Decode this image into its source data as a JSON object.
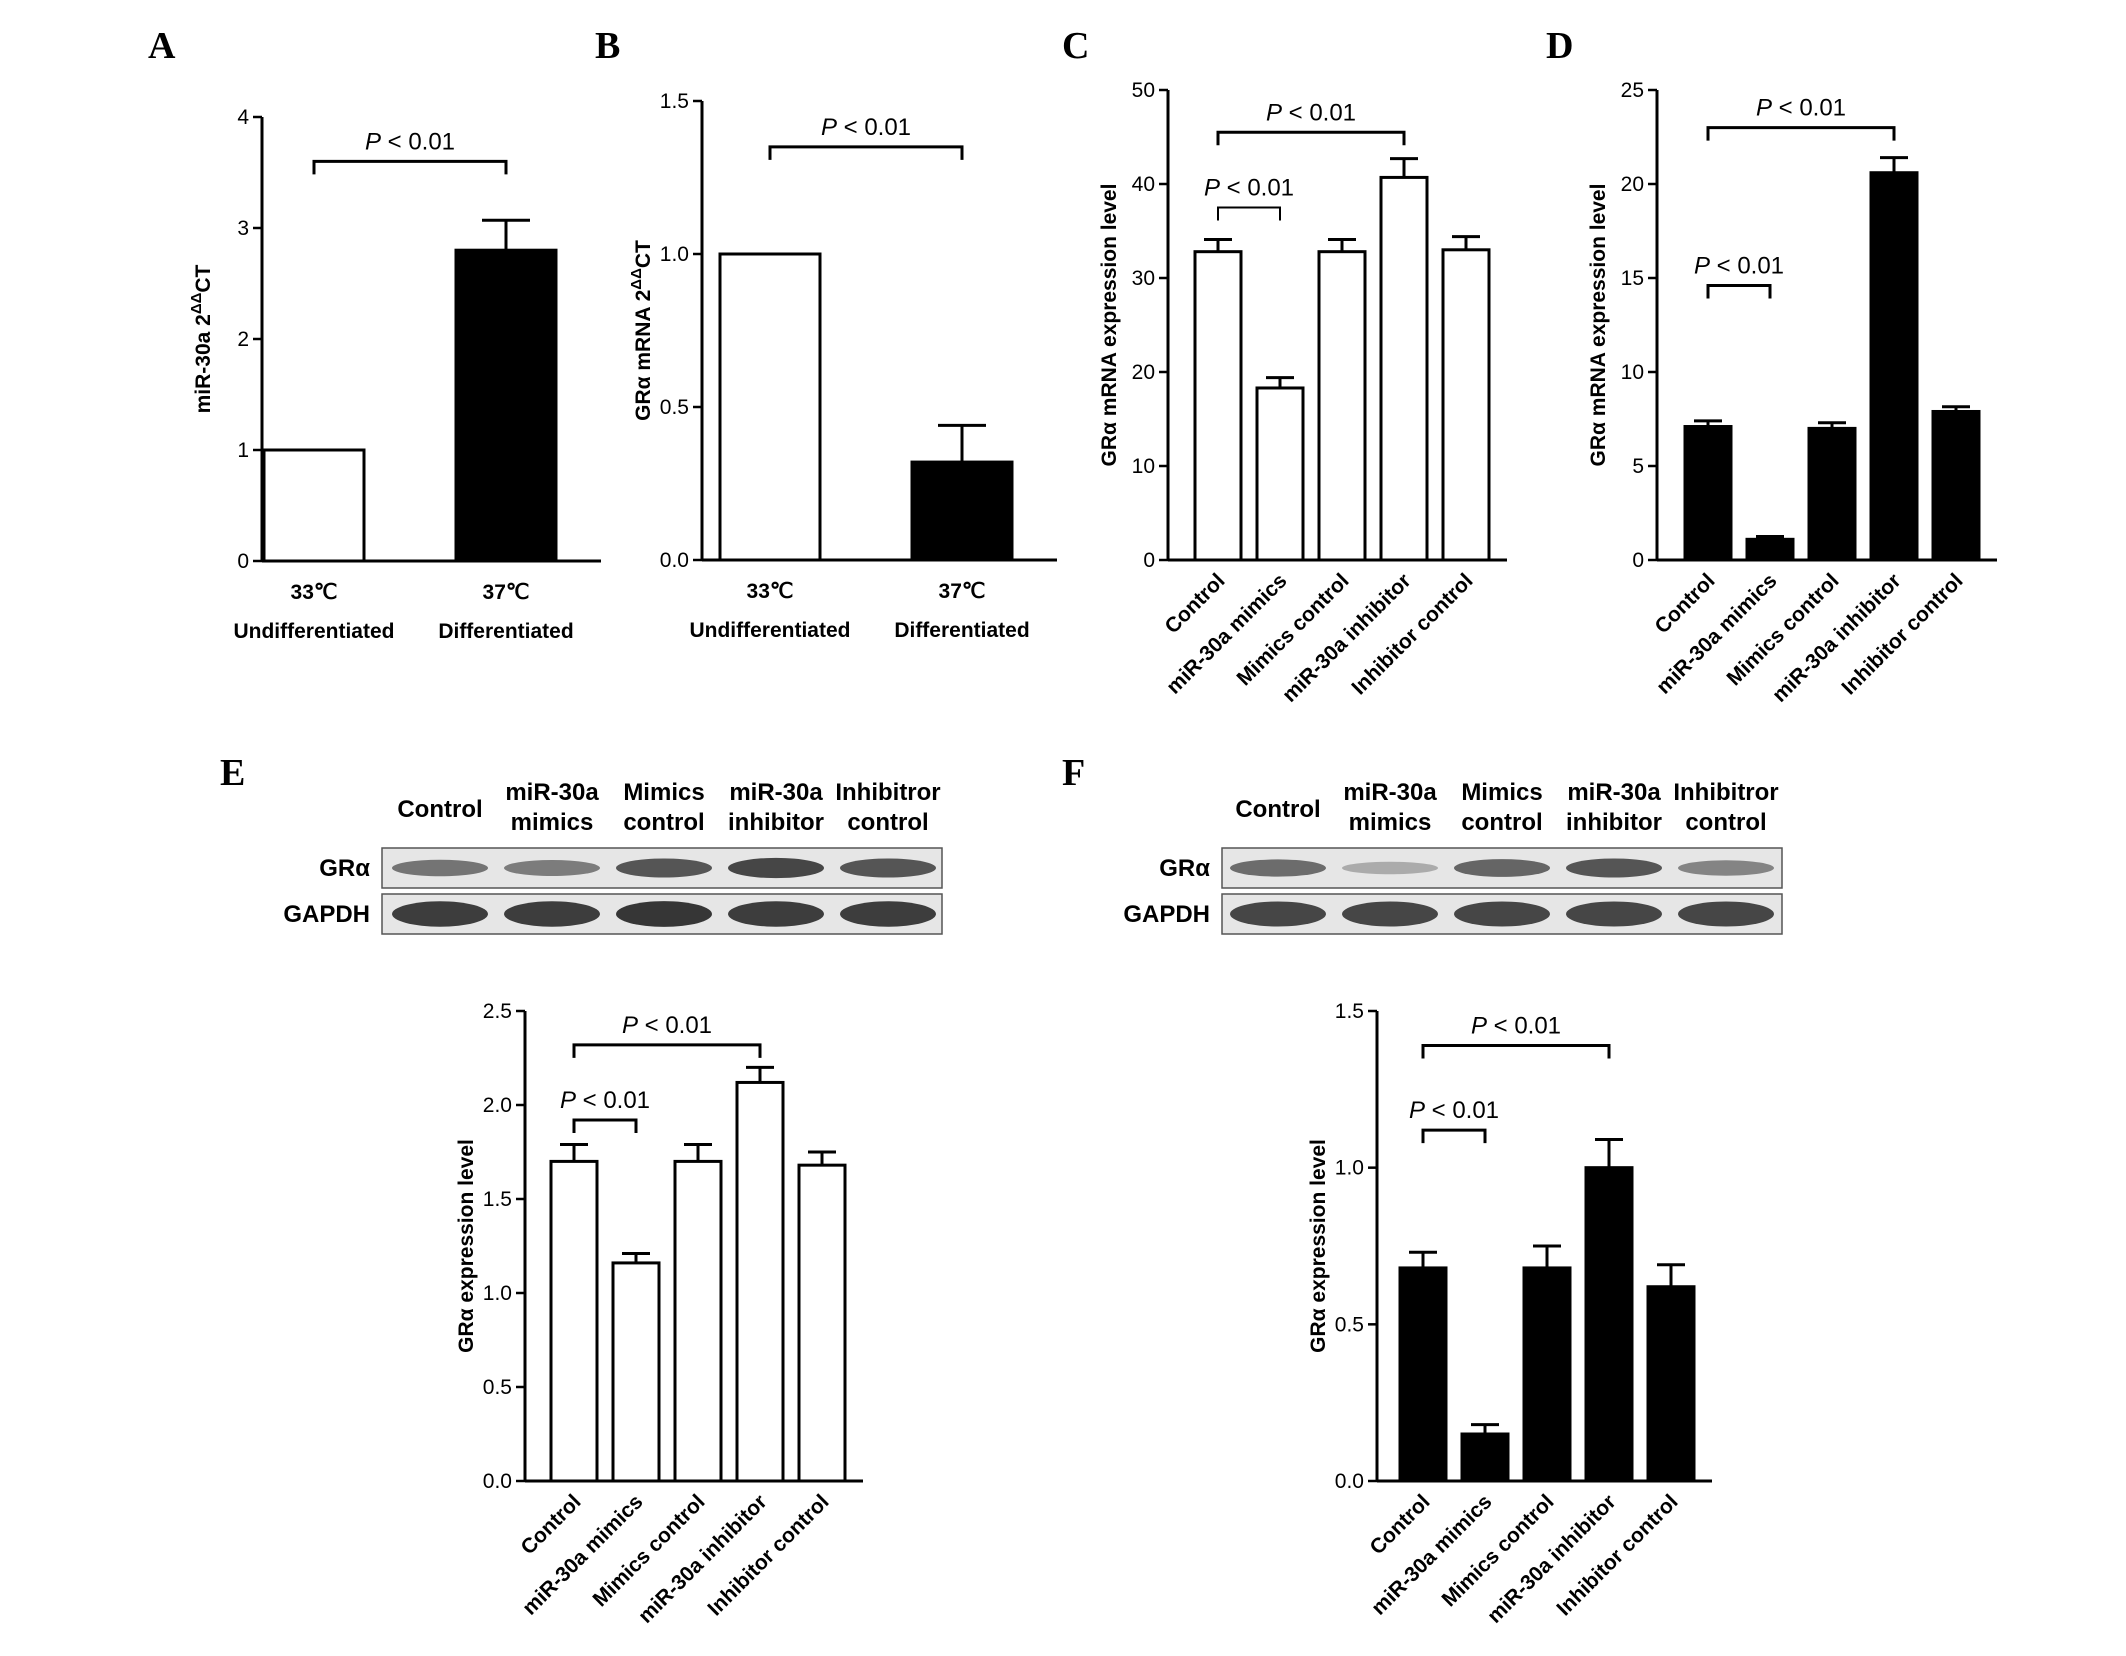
{
  "figure": {
    "panels": [
      {
        "letter": "A"
      },
      {
        "letter": "B"
      },
      {
        "letter": "C"
      },
      {
        "letter": "D"
      },
      {
        "letter": "E"
      },
      {
        "letter": "F"
      }
    ]
  },
  "significance_text": "P < 0.01",
  "colors": {
    "white_bar": "#ffffff",
    "black_bar": "#000000",
    "axis": "#000000"
  },
  "blots": [
    {
      "panel": "E",
      "lane_labels": [
        [
          "Control"
        ],
        [
          "miR-30a",
          "mimics"
        ],
        [
          "Mimics",
          "control"
        ],
        [
          "miR-30a",
          "inhibitor"
        ],
        [
          "Inhibitror",
          "control"
        ]
      ],
      "rows": [
        "GRα",
        "GAPDH"
      ],
      "grα_band_intensity": [
        0.55,
        0.5,
        0.75,
        0.85,
        0.75
      ],
      "gapdh_band_intensity": [
        0.9,
        0.9,
        0.95,
        0.9,
        0.9
      ]
    },
    {
      "panel": "F",
      "lane_labels": [
        [
          "Control"
        ],
        [
          "miR-30a",
          "mimics"
        ],
        [
          "Mimics",
          "control"
        ],
        [
          "miR-30a",
          "inhibitor"
        ],
        [
          "Inhibitror",
          "control"
        ]
      ],
      "rows": [
        "GRα",
        "GAPDH"
      ],
      "grα_band_intensity": [
        0.6,
        0.2,
        0.65,
        0.75,
        0.45
      ],
      "gapdh_band_intensity": [
        0.85,
        0.85,
        0.85,
        0.85,
        0.85
      ]
    }
  ],
  "chart_data": [
    {
      "panel": "A",
      "type": "bar",
      "categories": [
        [
          "33℃",
          "Undifferentiated"
        ],
        [
          "37℃",
          "Differentiated"
        ]
      ],
      "values": [
        1.0,
        2.8
      ],
      "errors": [
        0,
        0.27
      ],
      "bar_fill": [
        "white",
        "black"
      ],
      "ylabel": "miR-30a 2ΔΔCT",
      "ylim": [
        0,
        4
      ],
      "yticks": [
        0,
        1,
        2,
        3,
        4
      ],
      "tick_format": "int",
      "brackets": [
        {
          "from": 0,
          "to": 1,
          "y": 3.6,
          "label": "P < 0.01"
        }
      ],
      "xlabel_rotated": false
    },
    {
      "panel": "B",
      "type": "bar",
      "categories": [
        [
          "33℃",
          "Undifferentiated"
        ],
        [
          "37℃",
          "Differentiated"
        ]
      ],
      "values": [
        1.0,
        0.32
      ],
      "errors": [
        0,
        0.12
      ],
      "bar_fill": [
        "white",
        "black"
      ],
      "ylabel": "GRα mRNA 2ΔΔCT",
      "ylim": [
        0,
        1.5
      ],
      "yticks": [
        0,
        0.5,
        1.0,
        1.5
      ],
      "tick_format": "1dp",
      "brackets": [
        {
          "from": 0,
          "to": 1,
          "y": 1.35,
          "label": "P < 0.01"
        }
      ],
      "xlabel_rotated": false
    },
    {
      "panel": "C",
      "type": "bar",
      "categories": [
        "Control",
        "miR-30a mimics",
        "Mimics control",
        "miR-30a inhibitor",
        "Inhibitor control"
      ],
      "values": [
        32.8,
        18.3,
        32.8,
        40.7,
        33.0
      ],
      "errors": [
        1.3,
        1.1,
        1.3,
        2.0,
        1.4
      ],
      "bar_fill": [
        "white",
        "white",
        "white",
        "white",
        "white"
      ],
      "ylabel": "GRα mRNA expression level",
      "ylim": [
        0,
        50
      ],
      "yticks": [
        0,
        10,
        20,
        30,
        40,
        50
      ],
      "tick_format": "int",
      "brackets": [
        {
          "from": 0,
          "to": 3,
          "y": 45.5,
          "label": "P < 0.01"
        },
        {
          "from": 0,
          "to": 1,
          "y": 37.5,
          "label": "P < 0.01",
          "thin": true
        }
      ],
      "xlabel_rotated": true
    },
    {
      "panel": "D",
      "type": "bar",
      "categories": [
        "Control",
        "miR-30a mimics",
        "Mimics control",
        "miR-30a inhibitor",
        "Inhibitor control"
      ],
      "values": [
        7.1,
        1.1,
        7.0,
        20.6,
        7.9
      ],
      "errors": [
        0.3,
        0.15,
        0.3,
        0.8,
        0.25
      ],
      "bar_fill": [
        "black",
        "black",
        "black",
        "black",
        "black"
      ],
      "ylabel": "GRα mRNA expression level",
      "ylim": [
        0,
        25
      ],
      "yticks": [
        0,
        5,
        10,
        15,
        20,
        25
      ],
      "tick_format": "int",
      "brackets": [
        {
          "from": 0,
          "to": 3,
          "y": 23.0,
          "label": "P < 0.01"
        },
        {
          "from": 0,
          "to": 1,
          "y": 14.6,
          "label": "P < 0.01"
        }
      ],
      "xlabel_rotated": true
    },
    {
      "panel": "E",
      "type": "bar",
      "categories": [
        "Control",
        "miR-30a mimics",
        "Mimics control",
        "miR-30a inhibitor",
        "Inhibitor control"
      ],
      "values": [
        1.7,
        1.16,
        1.7,
        2.12,
        1.68
      ],
      "errors": [
        0.09,
        0.05,
        0.09,
        0.08,
        0.07
      ],
      "bar_fill": [
        "white",
        "white",
        "white",
        "white",
        "white"
      ],
      "ylabel": "GRα  expression level",
      "ylim": [
        0,
        2.5
      ],
      "yticks": [
        0,
        0.5,
        1.0,
        1.5,
        2.0,
        2.5
      ],
      "tick_format": "1dp",
      "brackets": [
        {
          "from": 0,
          "to": 3,
          "y": 2.32,
          "label": "P < 0.01"
        },
        {
          "from": 0,
          "to": 1,
          "y": 1.92,
          "label": "P < 0.01"
        }
      ],
      "xlabel_rotated": true
    },
    {
      "panel": "F",
      "type": "bar",
      "categories": [
        "Control",
        "miR-30a mimics",
        "Mimics control",
        "miR-30a inhibitor",
        "Inhibitor control"
      ],
      "values": [
        0.68,
        0.15,
        0.68,
        1.0,
        0.62
      ],
      "errors": [
        0.05,
        0.03,
        0.07,
        0.09,
        0.07
      ],
      "bar_fill": [
        "black",
        "black",
        "black",
        "black",
        "black"
      ],
      "ylabel": "GRα  expression level",
      "ylim": [
        0,
        1.5
      ],
      "yticks": [
        0,
        0.5,
        1.0,
        1.5
      ],
      "tick_format": "1dp",
      "brackets": [
        {
          "from": 0,
          "to": 3,
          "y": 1.39,
          "label": "P < 0.01"
        },
        {
          "from": 0,
          "to": 1,
          "y": 1.12,
          "label": "P < 0.01"
        }
      ],
      "xlabel_rotated": true
    }
  ]
}
